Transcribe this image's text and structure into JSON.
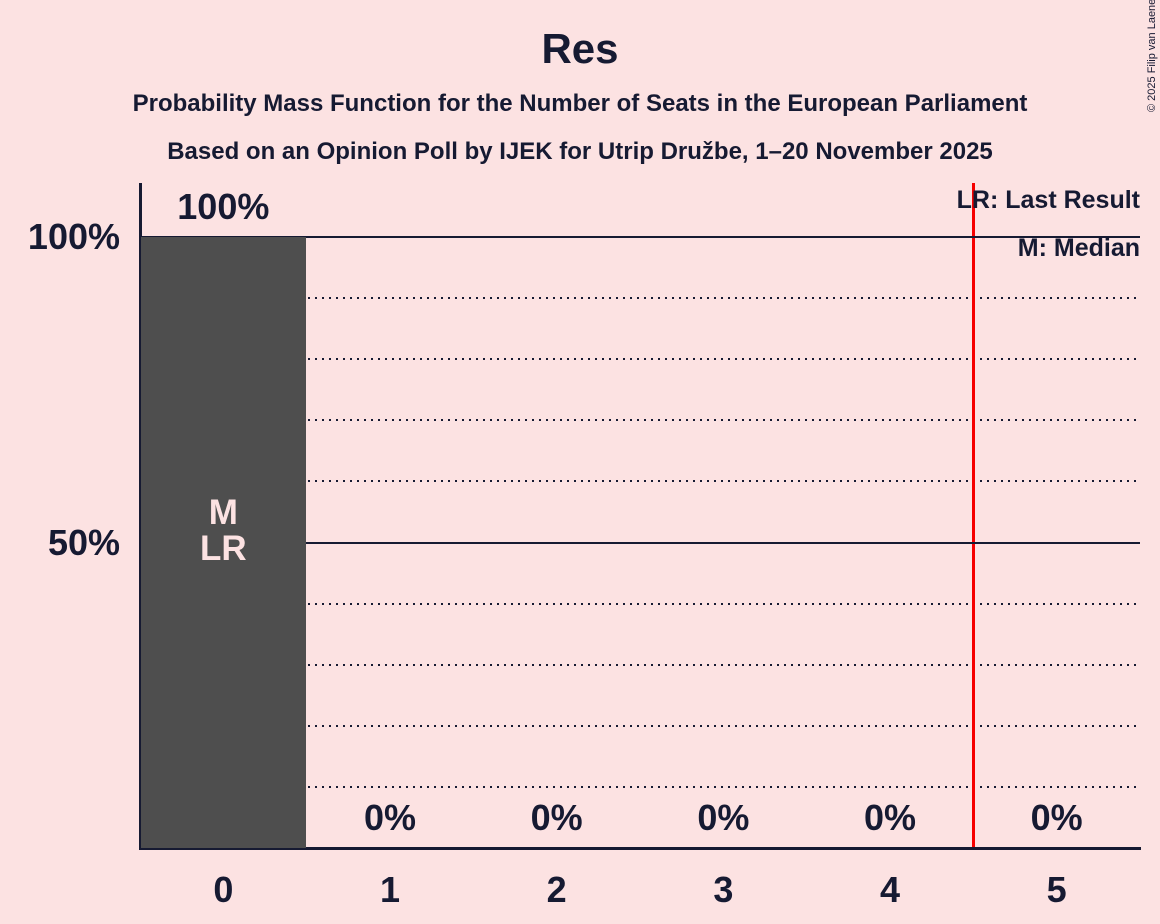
{
  "title": "Res",
  "subtitle1": "Probability Mass Function for the Number of Seats in the European Parliament",
  "subtitle2": "Based on an Opinion Poll by IJEK for Utrip Družbe, 1–20 November 2025",
  "copyright": "© 2025 Filip van Laenen",
  "legend": {
    "lr": "LR: Last Result",
    "m": "M: Median"
  },
  "colors": {
    "background": "#FCE2E2",
    "text": "#161A32",
    "bar": "#4E4E4E",
    "bar_label": "#FCE2E2",
    "red_line": "#F60000"
  },
  "chart_data": {
    "type": "bar",
    "title": "Res",
    "categories": [
      "0",
      "1",
      "2",
      "3",
      "4",
      "5"
    ],
    "values": [
      100,
      0,
      0,
      0,
      0,
      0
    ],
    "value_labels": [
      "100%",
      "0%",
      "0%",
      "0%",
      "0%",
      "0%"
    ],
    "xlabel": "",
    "ylabel": "",
    "ylim": [
      0,
      100
    ],
    "grid": "horizontal",
    "legend_position": "top-right",
    "y_axis_labels": [
      {
        "value": 100,
        "label": "100%"
      },
      {
        "value": 50,
        "label": "50%"
      }
    ],
    "gridlines": [
      {
        "value": 10,
        "style": "dotted"
      },
      {
        "value": 20,
        "style": "dotted"
      },
      {
        "value": 30,
        "style": "dotted"
      },
      {
        "value": 40,
        "style": "dotted"
      },
      {
        "value": 50,
        "style": "solid"
      },
      {
        "value": 60,
        "style": "dotted"
      },
      {
        "value": 70,
        "style": "dotted"
      },
      {
        "value": 80,
        "style": "dotted"
      },
      {
        "value": 90,
        "style": "dotted"
      },
      {
        "value": 100,
        "style": "solid"
      }
    ],
    "bar_annotations": [
      {
        "category": "0",
        "lines": [
          "M",
          "LR"
        ]
      }
    ],
    "median_at_category": "0",
    "last_result_at_category": "0",
    "vertical_line": {
      "x": 4.5
    }
  }
}
